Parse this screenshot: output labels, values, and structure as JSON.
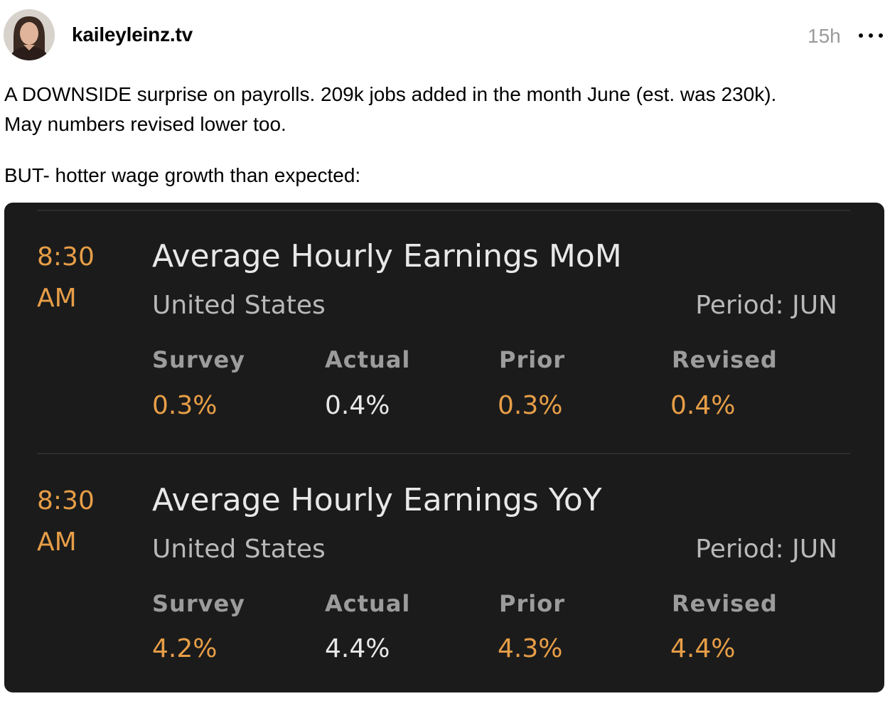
{
  "post": {
    "username": "kaileyleinz.tv",
    "timestamp": "15h",
    "more_icon": "more-horizontal-icon",
    "avatar_icon": "user-avatar",
    "text_lines": [
      "A DOWNSIDE surprise on payrolls. 209k jobs added in the month June (est. was 230k).",
      "May numbers revised lower too.",
      "BUT- hotter wage growth than expected:"
    ]
  },
  "colors": {
    "card_background": "#1b1b1b",
    "accent_orange": "#e79e47",
    "value_white": "#e8e8e8",
    "label_gray": "#9c9c9c"
  },
  "events": [
    {
      "time_line1": "8:30",
      "time_line2": "AM",
      "title": "Average Hourly Earnings MoM",
      "country": "United States",
      "period": "Period: JUN",
      "columns": [
        {
          "label": "Survey",
          "value": "0.3%"
        },
        {
          "label": "Actual",
          "value": "0.4%"
        },
        {
          "label": "Prior",
          "value": "0.3%"
        },
        {
          "label": "Revised",
          "value": "0.4%"
        }
      ]
    },
    {
      "time_line1": "8:30",
      "time_line2": "AM",
      "title": "Average Hourly Earnings YoY",
      "country": "United States",
      "period": "Period: JUN",
      "columns": [
        {
          "label": "Survey",
          "value": "4.2%"
        },
        {
          "label": "Actual",
          "value": "4.4%"
        },
        {
          "label": "Prior",
          "value": "4.3%"
        },
        {
          "label": "Revised",
          "value": "4.4%"
        }
      ]
    }
  ]
}
